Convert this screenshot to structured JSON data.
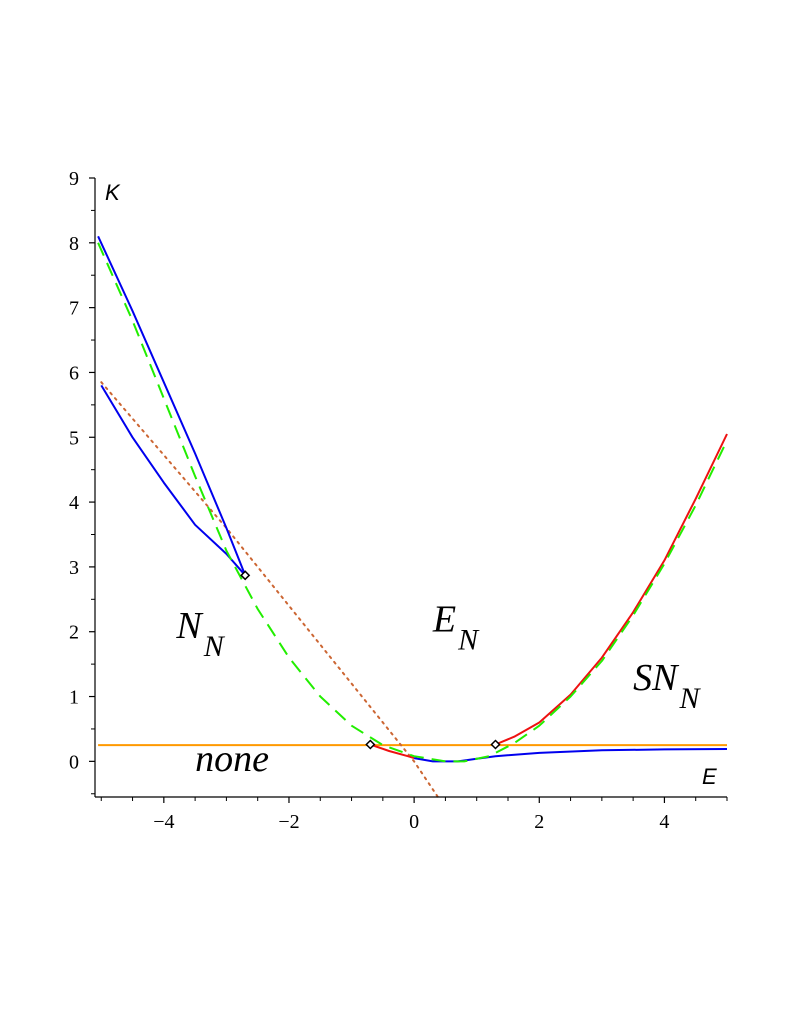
{
  "chart_data": {
    "type": "line",
    "xlabel": "E",
    "ylabel": "K",
    "xlim": [
      -5.1,
      5
    ],
    "ylim": [
      -0.55,
      9
    ],
    "x_ticks": [
      -4,
      -2,
      0,
      2,
      4
    ],
    "x_tick_labels": [
      "−4",
      "−2",
      "0",
      "2",
      "4"
    ],
    "y_ticks": [
      0,
      1,
      2,
      3,
      4,
      5,
      6,
      7,
      8,
      9
    ],
    "y_tick_labels": [
      "0",
      "1",
      "2",
      "3",
      "4",
      "5",
      "6",
      "7",
      "8",
      "9"
    ],
    "grid": false,
    "colors": {
      "orange": "#ff9900",
      "blue": "#0000ee",
      "red": "#ee1111",
      "green": "#22ee00",
      "brown_dotted": "#cc6633",
      "marker": "#000000"
    },
    "series": [
      {
        "color": "orange",
        "dash": "solid",
        "points": [
          [
            -5.05,
            0.25
          ],
          [
            5.0,
            0.25
          ]
        ]
      },
      {
        "color": "brown_dotted",
        "dash": "dotted",
        "points": [
          [
            -5.0,
            5.85
          ],
          [
            -3.0,
            3.6
          ],
          [
            -1.0,
            1.2
          ],
          [
            0.0,
            0.0
          ],
          [
            0.38,
            -0.55
          ]
        ]
      },
      {
        "color": "blue",
        "dash": "solid",
        "points": [
          [
            -5.05,
            8.1
          ],
          [
            -4.5,
            6.95
          ],
          [
            -4.0,
            5.85
          ],
          [
            -3.5,
            4.75
          ],
          [
            -3.0,
            3.6
          ],
          [
            -2.7,
            2.87
          ]
        ]
      },
      {
        "color": "blue",
        "dash": "solid",
        "points": [
          [
            -5.0,
            5.8
          ],
          [
            -4.5,
            5.0
          ],
          [
            -4.0,
            4.3
          ],
          [
            -3.5,
            3.65
          ],
          [
            -3.0,
            3.2
          ],
          [
            -2.7,
            2.87
          ]
        ]
      },
      {
        "color": "red",
        "dash": "solid",
        "points": [
          [
            -0.7,
            0.26
          ],
          [
            -0.4,
            0.16
          ],
          [
            -0.1,
            0.08
          ],
          [
            0.0,
            0.05
          ]
        ]
      },
      {
        "color": "blue",
        "dash": "solid",
        "points": [
          [
            0.0,
            0.05
          ],
          [
            0.3,
            0.0
          ],
          [
            0.7,
            0.0
          ],
          [
            1.0,
            0.04
          ],
          [
            1.3,
            0.08
          ],
          [
            2.0,
            0.13
          ],
          [
            3.0,
            0.17
          ],
          [
            4.0,
            0.185
          ],
          [
            5.0,
            0.19
          ]
        ]
      },
      {
        "color": "red",
        "dash": "solid",
        "points": [
          [
            1.3,
            0.26
          ],
          [
            1.6,
            0.38
          ],
          [
            2.0,
            0.6
          ],
          [
            2.5,
            1.03
          ],
          [
            3.0,
            1.6
          ],
          [
            3.5,
            2.3
          ],
          [
            4.0,
            3.1
          ],
          [
            4.5,
            4.05
          ],
          [
            5.0,
            5.05
          ]
        ]
      },
      {
        "color": "green",
        "dash": "dashed",
        "points": [
          [
            -5.05,
            8.0
          ],
          [
            -4.5,
            6.8
          ],
          [
            -4.0,
            5.6
          ],
          [
            -3.5,
            4.4
          ],
          [
            -3.0,
            3.25
          ],
          [
            -2.5,
            2.35
          ],
          [
            -2.0,
            1.6
          ],
          [
            -1.5,
            1.0
          ],
          [
            -1.0,
            0.55
          ],
          [
            -0.5,
            0.25
          ],
          [
            0.0,
            0.08
          ],
          [
            0.5,
            0.0
          ],
          [
            0.8,
            0.0
          ],
          [
            1.2,
            0.08
          ],
          [
            1.6,
            0.28
          ],
          [
            2.0,
            0.55
          ],
          [
            2.5,
            1.0
          ],
          [
            3.0,
            1.55
          ],
          [
            3.5,
            2.25
          ],
          [
            4.0,
            3.05
          ],
          [
            4.5,
            3.95
          ],
          [
            5.0,
            4.95
          ]
        ]
      }
    ],
    "markers": [
      [
        -2.7,
        2.87
      ],
      [
        -0.7,
        0.26
      ],
      [
        1.3,
        0.26
      ]
    ],
    "annotations": [
      {
        "main": "N",
        "sub": "N",
        "at": [
          -3.8,
          1.9
        ]
      },
      {
        "main": "E",
        "sub": "N",
        "at": [
          0.3,
          2.0
        ]
      },
      {
        "main": "SN",
        "sub": "N",
        "at": [
          3.5,
          1.1
        ]
      },
      {
        "main": "none",
        "sub": "",
        "at": [
          -3.5,
          -0.15
        ]
      }
    ]
  }
}
